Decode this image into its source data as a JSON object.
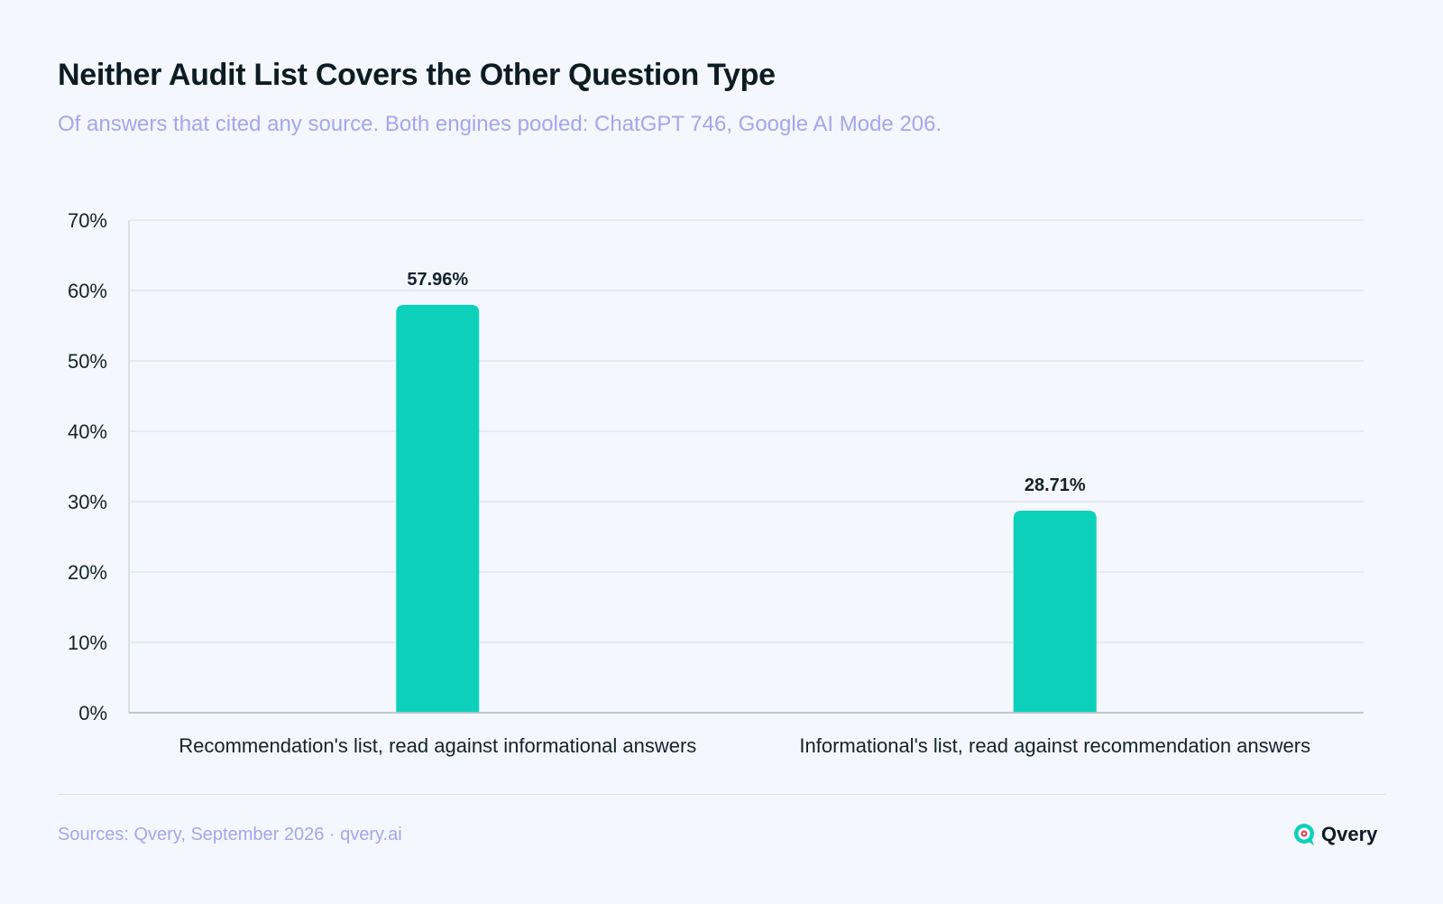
{
  "header": {
    "title": "Neither Audit List Covers the Other Question Type",
    "subtitle": "Of answers that cited any source. Both engines pooled: ChatGPT 746, Google AI Mode 206."
  },
  "chart_data": {
    "type": "bar",
    "categories": [
      "Recommendation's list, read against informational answers",
      "Informational's list, read against recommendation answers"
    ],
    "values": [
      57.96,
      28.71
    ],
    "data_labels": [
      "57.96%",
      "28.71%"
    ],
    "ylim": [
      0,
      70
    ],
    "yticks": [
      0,
      10,
      20,
      30,
      40,
      50,
      60,
      70
    ],
    "ytick_labels": [
      "0%",
      "10%",
      "20%",
      "30%",
      "40%",
      "50%",
      "60%",
      "70%"
    ],
    "grid": true,
    "bar_color": "#0dd0bb"
  },
  "footer": {
    "source": "Sources: Qvery, September 2026 · qvery.ai",
    "brand": "Qvery",
    "brand_icon": "qvery-logo-icon",
    "brand_icon_color": "#0dd0bb",
    "brand_accent_color": "#f0425a"
  }
}
